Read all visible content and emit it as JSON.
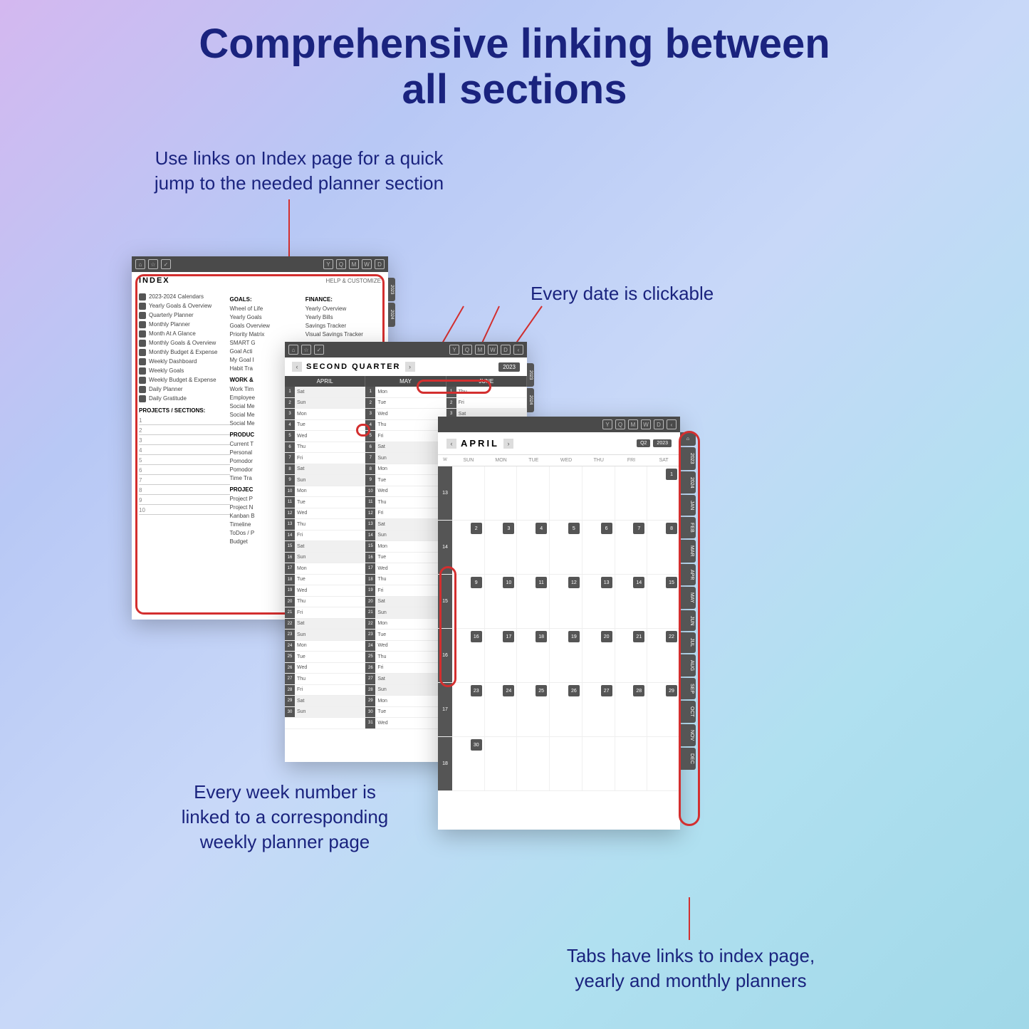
{
  "title_line1": "Comprehensive linking between",
  "title_line2": "all sections",
  "captions": {
    "c1a": "Use links on Index page for a quick",
    "c1b": "jump to the needed planner section",
    "c2": "Every date is clickable",
    "c3a": "Every week number is",
    "c3b": "linked to a corresponding",
    "c3c": "weekly planner page",
    "c4a": "Tabs have links to index page,",
    "c4b": "yearly and monthly planners"
  },
  "colors": {
    "text": "#1a237e",
    "highlight": "#d32f2f",
    "dark": "#4a4a4a"
  },
  "page1": {
    "title": "INDEX",
    "customize": "HELP & CUSTOMIZE",
    "left_items": [
      "2023-2024 Calendars",
      "Yearly Goals & Overview",
      "Quarterly Planner",
      "Monthly Planner",
      "Month At A Glance",
      "Monthly Goals & Overview",
      "Monthly Budget & Expense",
      "Weekly Dashboard",
      "Weekly Goals",
      "Weekly Budget & Expense",
      "Daily Planner",
      "Daily Gratitude"
    ],
    "projects_label": "PROJECTS / SECTIONS:",
    "project_nums": [
      "1",
      "2",
      "3",
      "4",
      "5",
      "6",
      "7",
      "8",
      "9",
      "10"
    ],
    "mid_sections": [
      {
        "h": "GOALS:",
        "items": [
          "Wheel of Life",
          "Yearly Goals",
          "Goals Overview",
          "Priority Matrix",
          "SMART G",
          "Goal Acti",
          "My Goal I",
          "Habit Tra"
        ]
      },
      {
        "h": "WORK &",
        "items": [
          "Work Tim",
          "Employee",
          "Social Me",
          "Social Me",
          "Social Me"
        ]
      },
      {
        "h": "PRODUC",
        "items": [
          "Current T",
          "Personal",
          "Pomodor",
          "Pomodor",
          "Time Tra"
        ]
      },
      {
        "h": "PROJEC",
        "items": [
          "Project P",
          "Project N",
          "Kanban B",
          "Timeline",
          "ToDos / P",
          "Budget"
        ]
      }
    ],
    "right_sections": [
      {
        "h": "FINANCE:",
        "items": [
          "Yearly Overview",
          "Yearly Bills",
          "Savings Tracker",
          "Visual Savings Tracker"
        ]
      }
    ],
    "side_years": [
      "2023",
      "2024"
    ]
  },
  "page2": {
    "title": "SECOND QUARTER",
    "year": "2023",
    "months": [
      "APRIL",
      "MAY",
      "JUNE"
    ],
    "april": [
      [
        1,
        "Sat"
      ],
      [
        2,
        "Sun"
      ],
      [
        3,
        "Mon"
      ],
      [
        4,
        "Tue"
      ],
      [
        5,
        "Wed"
      ],
      [
        6,
        "Thu"
      ],
      [
        7,
        "Fri"
      ],
      [
        8,
        "Sat"
      ],
      [
        9,
        "Sun"
      ],
      [
        10,
        "Mon"
      ],
      [
        11,
        "Tue"
      ],
      [
        12,
        "Wed"
      ],
      [
        13,
        "Thu"
      ],
      [
        14,
        "Fri"
      ],
      [
        15,
        "Sat"
      ],
      [
        16,
        "Sun"
      ],
      [
        17,
        "Mon"
      ],
      [
        18,
        "Tue"
      ],
      [
        19,
        "Wed"
      ],
      [
        20,
        "Thu"
      ],
      [
        21,
        "Fri"
      ],
      [
        22,
        "Sat"
      ],
      [
        23,
        "Sun"
      ],
      [
        24,
        "Mon"
      ],
      [
        25,
        "Tue"
      ],
      [
        26,
        "Wed"
      ],
      [
        27,
        "Thu"
      ],
      [
        28,
        "Fri"
      ],
      [
        29,
        "Sat"
      ],
      [
        30,
        "Sun"
      ]
    ],
    "may": [
      [
        1,
        "Mon"
      ],
      [
        2,
        "Tue"
      ],
      [
        3,
        "Wed"
      ],
      [
        4,
        "Thu"
      ],
      [
        5,
        "Fri"
      ],
      [
        6,
        "Sat"
      ],
      [
        7,
        "Sun"
      ],
      [
        8,
        "Mon"
      ],
      [
        9,
        "Tue"
      ],
      [
        10,
        "Wed"
      ],
      [
        11,
        "Thu"
      ],
      [
        12,
        "Fri"
      ],
      [
        13,
        "Sat"
      ],
      [
        14,
        "Sun"
      ],
      [
        15,
        "Mon"
      ],
      [
        16,
        "Tue"
      ],
      [
        17,
        "Wed"
      ],
      [
        18,
        "Thu"
      ],
      [
        19,
        "Fri"
      ],
      [
        20,
        "Sat"
      ],
      [
        21,
        "Sun"
      ],
      [
        22,
        "Mon"
      ],
      [
        23,
        "Tue"
      ],
      [
        24,
        "Wed"
      ],
      [
        25,
        "Thu"
      ],
      [
        26,
        "Fri"
      ],
      [
        27,
        "Sat"
      ],
      [
        28,
        "Sun"
      ],
      [
        29,
        "Mon"
      ],
      [
        30,
        "Tue"
      ],
      [
        31,
        "Wed"
      ]
    ],
    "june": [
      [
        1,
        "Thu"
      ],
      [
        2,
        "Fri"
      ],
      [
        3,
        "Sat"
      ],
      [
        4,
        "Sun"
      ]
    ],
    "side_years": [
      "2023",
      "2024"
    ]
  },
  "page3": {
    "title": "APRIL",
    "badges": [
      "Q2",
      "2023"
    ],
    "dow": [
      "W",
      "SUN",
      "MON",
      "TUE",
      "WED",
      "THU",
      "FRI",
      "SAT"
    ],
    "weeks": [
      {
        "num": "13",
        "days": [
          "",
          "",
          "",
          "",
          "",
          "",
          "1"
        ]
      },
      {
        "num": "14",
        "days": [
          "2",
          "3",
          "4",
          "5",
          "6",
          "7",
          "8"
        ]
      },
      {
        "num": "15",
        "days": [
          "9",
          "10",
          "11",
          "12",
          "13",
          "14",
          "15"
        ]
      },
      {
        "num": "16",
        "days": [
          "16",
          "17",
          "18",
          "19",
          "20",
          "21",
          "22"
        ]
      },
      {
        "num": "17",
        "days": [
          "23",
          "24",
          "25",
          "26",
          "27",
          "28",
          "29"
        ]
      },
      {
        "num": "18",
        "days": [
          "30",
          "",
          "",
          "",
          "",
          "",
          ""
        ]
      }
    ],
    "tabs": [
      "⌂",
      "2023",
      "2024",
      "JAN",
      "FEB",
      "MAR",
      "APR",
      "MAY",
      "JUN",
      "JUL",
      "AUG",
      "SEP",
      "OCT",
      "NOV",
      "DEC"
    ]
  }
}
